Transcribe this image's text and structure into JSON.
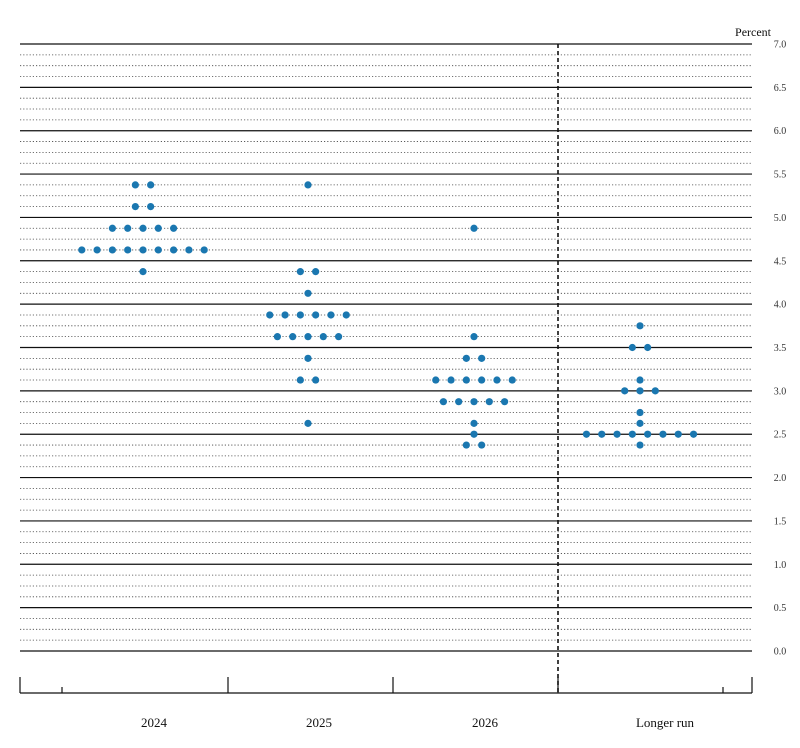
{
  "chart_data": {
    "type": "scatter",
    "title": "",
    "ylabel": "Percent",
    "ylim": [
      0,
      7
    ],
    "y_ticks": [
      "0.0",
      "0.5",
      "1.0",
      "1.5",
      "2.0",
      "2.5",
      "3.0",
      "3.5",
      "4.0",
      "4.5",
      "5.0",
      "5.5",
      "6.0",
      "6.5",
      "7.0"
    ],
    "categories": [
      "2024",
      "2025",
      "2026",
      "Longer run"
    ],
    "grid": "dotted minor lines every 0.125, solid lines every 0.5",
    "divider_before": "Longer run",
    "dot_color": "#1a77b0",
    "series": [
      {
        "category": "2024",
        "points": [
          {
            "y": 5.375,
            "count": 2
          },
          {
            "y": 5.125,
            "count": 2
          },
          {
            "y": 4.875,
            "count": 5
          },
          {
            "y": 4.625,
            "count": 9
          },
          {
            "y": 4.375,
            "count": 1
          }
        ]
      },
      {
        "category": "2025",
        "points": [
          {
            "y": 5.375,
            "count": 1
          },
          {
            "y": 4.375,
            "count": 2
          },
          {
            "y": 4.125,
            "count": 1
          },
          {
            "y": 3.875,
            "count": 6
          },
          {
            "y": 3.625,
            "count": 5
          },
          {
            "y": 3.375,
            "count": 1
          },
          {
            "y": 3.125,
            "count": 2
          },
          {
            "y": 2.625,
            "count": 1
          }
        ]
      },
      {
        "category": "2026",
        "points": [
          {
            "y": 4.875,
            "count": 1
          },
          {
            "y": 3.625,
            "count": 1
          },
          {
            "y": 3.375,
            "count": 2
          },
          {
            "y": 3.125,
            "count": 6
          },
          {
            "y": 2.875,
            "count": 5
          },
          {
            "y": 2.625,
            "count": 1
          },
          {
            "y": 2.5,
            "count": 1
          },
          {
            "y": 2.375,
            "count": 2
          }
        ]
      },
      {
        "category": "Longer run",
        "points": [
          {
            "y": 3.75,
            "count": 1
          },
          {
            "y": 3.5,
            "count": 2
          },
          {
            "y": 3.125,
            "count": 1
          },
          {
            "y": 3.0,
            "count": 3
          },
          {
            "y": 2.75,
            "count": 1
          },
          {
            "y": 2.625,
            "count": 1
          },
          {
            "y": 2.5,
            "count": 8
          },
          {
            "y": 2.375,
            "count": 1
          }
        ]
      }
    ]
  }
}
